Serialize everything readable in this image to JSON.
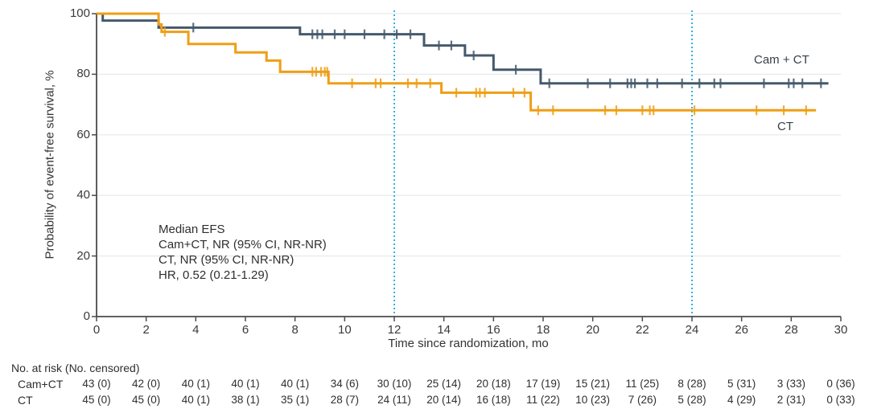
{
  "chart_data": {
    "type": "line",
    "subtype": "kaplan-meier-step",
    "title": "",
    "xlabel": "Time since randomization, mo",
    "ylabel": "Probability of event-free survival, %",
    "xlim": [
      0,
      30
    ],
    "ylim": [
      0,
      100
    ],
    "x_ticks": [
      0,
      2,
      4,
      6,
      8,
      10,
      12,
      14,
      16,
      18,
      20,
      22,
      24,
      26,
      28,
      30
    ],
    "y_ticks": [
      0,
      20,
      40,
      60,
      80,
      100
    ],
    "grid": "horizontal",
    "reference_lines_x": [
      12,
      24
    ],
    "series": [
      {
        "name": "Cam + CT",
        "color": "#44596C",
        "steps": [
          [
            0,
            100
          ],
          [
            0.25,
            97.7
          ],
          [
            2.5,
            95.4
          ],
          [
            8.2,
            93.2
          ],
          [
            13.2,
            89.5
          ],
          [
            14.85,
            86.2
          ],
          [
            16.0,
            81.5
          ],
          [
            17.9,
            77.0
          ]
        ],
        "end": 29.5,
        "censor_times": [
          3.9,
          8.7,
          8.9,
          9.1,
          9.6,
          10.0,
          10.8,
          11.6,
          12.1,
          12.65,
          13.8,
          14.3,
          15.2,
          16.9,
          18.25,
          19.8,
          20.7,
          21.4,
          21.55,
          21.7,
          22.2,
          22.6,
          23.6,
          24.3,
          24.9,
          25.15,
          26.9,
          27.9,
          28.1,
          28.45,
          29.2
        ]
      },
      {
        "name": "CT",
        "color": "#EF9E15",
        "steps": [
          [
            0,
            100
          ],
          [
            2.5,
            96.5
          ],
          [
            2.62,
            94.0
          ],
          [
            3.7,
            90.0
          ],
          [
            5.6,
            87.2
          ],
          [
            6.85,
            84.5
          ],
          [
            7.4,
            80.8
          ],
          [
            9.35,
            77.0
          ],
          [
            13.9,
            73.9
          ],
          [
            17.5,
            68.1
          ]
        ],
        "end": 29.0,
        "censor_times": [
          2.75,
          8.7,
          8.85,
          9.05,
          9.2,
          9.3,
          10.3,
          11.25,
          11.45,
          12.55,
          12.9,
          13.45,
          14.5,
          15.3,
          15.45,
          15.65,
          16.8,
          17.25,
          17.8,
          18.4,
          20.5,
          20.95,
          22.0,
          22.3,
          22.45,
          24.1,
          26.6,
          27.7,
          28.6
        ]
      }
    ],
    "annotation": {
      "lines": [
        "Median EFS",
        "Cam+CT, NR (95% CI, NR-NR)",
        "CT, NR (95% CI, NR-NR)",
        "HR, 0.52 (0.21-1.29)"
      ]
    },
    "risk_table": {
      "header": "No. at risk (No. censored)",
      "times": [
        0,
        2,
        4,
        6,
        8,
        10,
        12,
        14,
        16,
        18,
        20,
        22,
        24,
        26,
        28,
        30
      ],
      "rows": [
        {
          "label": "Cam+CT",
          "values": [
            "43 (0)",
            "42 (0)",
            "40 (1)",
            "40 (1)",
            "40 (1)",
            "34 (6)",
            "30 (10)",
            "25 (14)",
            "20 (18)",
            "17 (19)",
            "15 (21)",
            "11 (25)",
            "8 (28)",
            "5 (31)",
            "3 (33)",
            "0 (36)"
          ]
        },
        {
          "label": "CT",
          "values": [
            "45 (0)",
            "45 (0)",
            "40 (1)",
            "38 (1)",
            "35 (1)",
            "28 (7)",
            "24 (11)",
            "20 (14)",
            "16 (18)",
            "11 (22)",
            "10 (23)",
            "7 (26)",
            "5 (28)",
            "4 (29)",
            "2 (31)",
            "0 (33)"
          ]
        }
      ]
    },
    "colors": {
      "axis": "#4B4B4B",
      "grid": "#E9E9E9",
      "reference_line": "#33B3E3",
      "text": "#333333"
    }
  }
}
